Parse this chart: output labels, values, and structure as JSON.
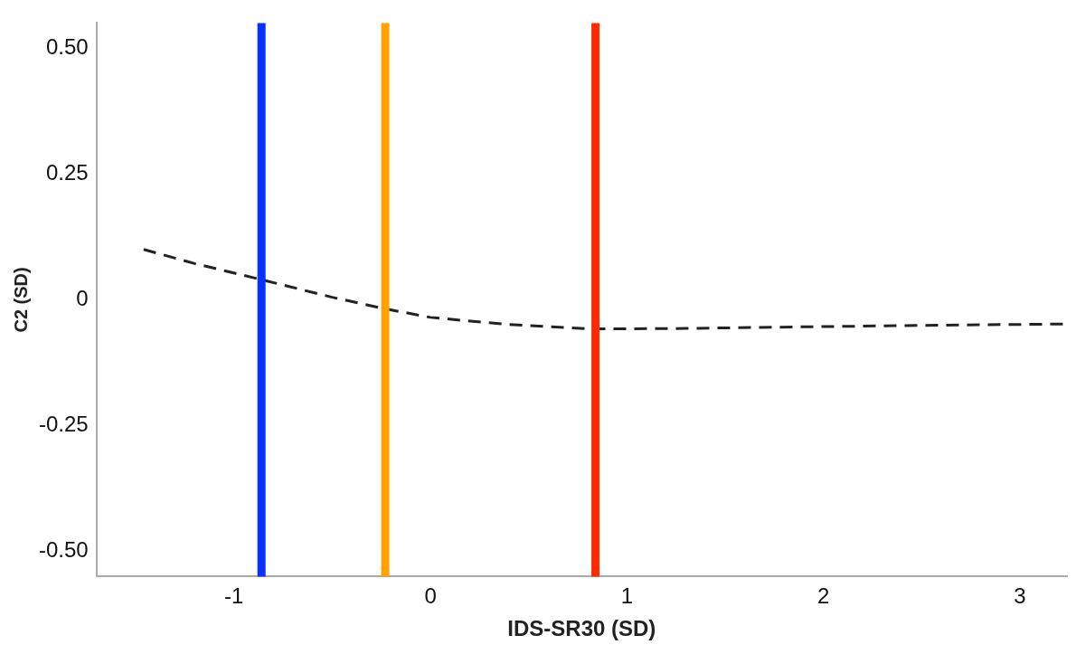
{
  "chart_data": {
    "type": "line",
    "xlabel": "IDS-SR30 (SD)",
    "ylabel": "C2 (SD)",
    "xlim": [
      -1.7,
      3.24
    ],
    "xticks": [
      -1,
      0,
      1,
      2,
      3
    ],
    "ylim": [
      -0.55,
      0.55
    ],
    "yticks": [
      {
        "value": -0.5,
        "label": "-0.50"
      },
      -0.25,
      0,
      0.25,
      {
        "value": 0.5,
        "label": "0.50"
      }
    ],
    "series": [
      {
        "color": "#222222",
        "line_style": "dashed",
        "marker": "none",
        "x": [
          -1.46,
          -1.2,
          -0.86,
          -0.5,
          -0.23,
          0,
          0.39,
          0.83,
          1.3,
          1.84,
          2.5,
          3.24
        ],
        "values": [
          0.1,
          0.072,
          0.04,
          0.005,
          -0.018,
          -0.035,
          -0.049,
          -0.058,
          -0.057,
          -0.054,
          -0.051,
          -0.048
        ]
      }
    ],
    "ref_lines": [
      {
        "axis": "x",
        "value": -0.86,
        "color": "#0a30ff"
      },
      {
        "axis": "x",
        "value": -0.23,
        "color": "#ffa200"
      },
      {
        "axis": "x",
        "value": 0.84,
        "color": "#ff2a00"
      }
    ]
  }
}
